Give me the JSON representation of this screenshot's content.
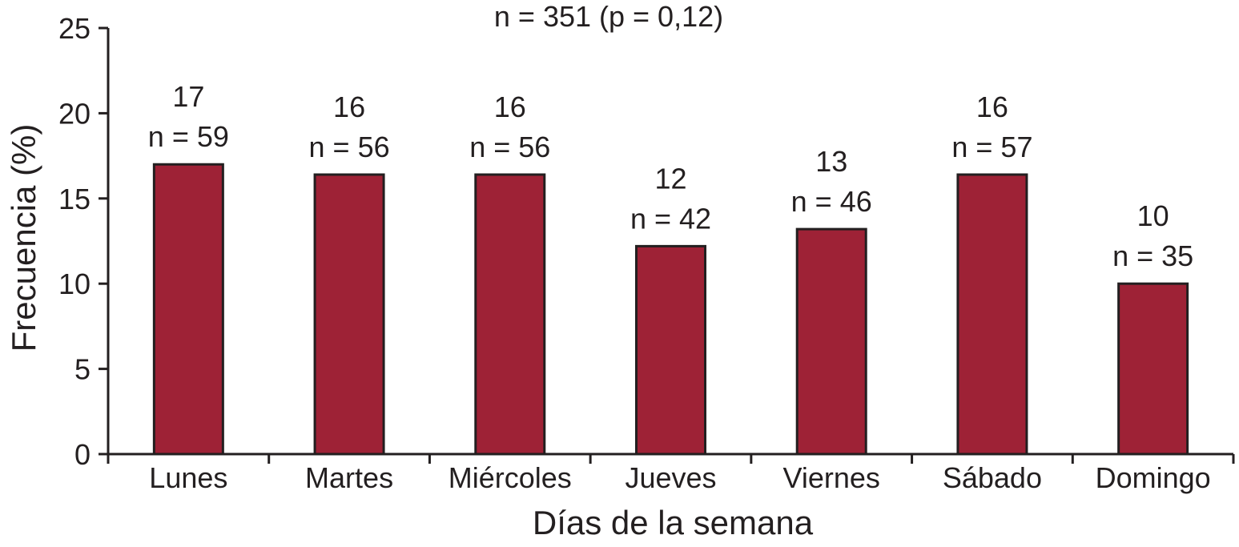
{
  "chart_data": {
    "type": "bar",
    "title": "n = 351 (p = 0,12)",
    "xlabel": "Días de la semana",
    "ylabel": "Frecuencia (%)",
    "ylim": [
      0,
      25
    ],
    "yticks": [
      0,
      5,
      10,
      15,
      20,
      25
    ],
    "grid": false,
    "bar_color": "#9e2236",
    "bar_edge_color": "#231f20",
    "categories": [
      "Lunes",
      "Martes",
      "Miércoles",
      "Jueves",
      "Viernes",
      "Sábado",
      "Domingo"
    ],
    "values": [
      17,
      16.4,
      16.4,
      12.2,
      13.2,
      16.4,
      10.0
    ],
    "value_labels": [
      "17",
      "16",
      "16",
      "12",
      "13",
      "16",
      "10"
    ],
    "count_labels": [
      "n = 59",
      "n = 56",
      "n = 56",
      "n = 42",
      "n = 46",
      "n = 57",
      "n = 35"
    ]
  }
}
